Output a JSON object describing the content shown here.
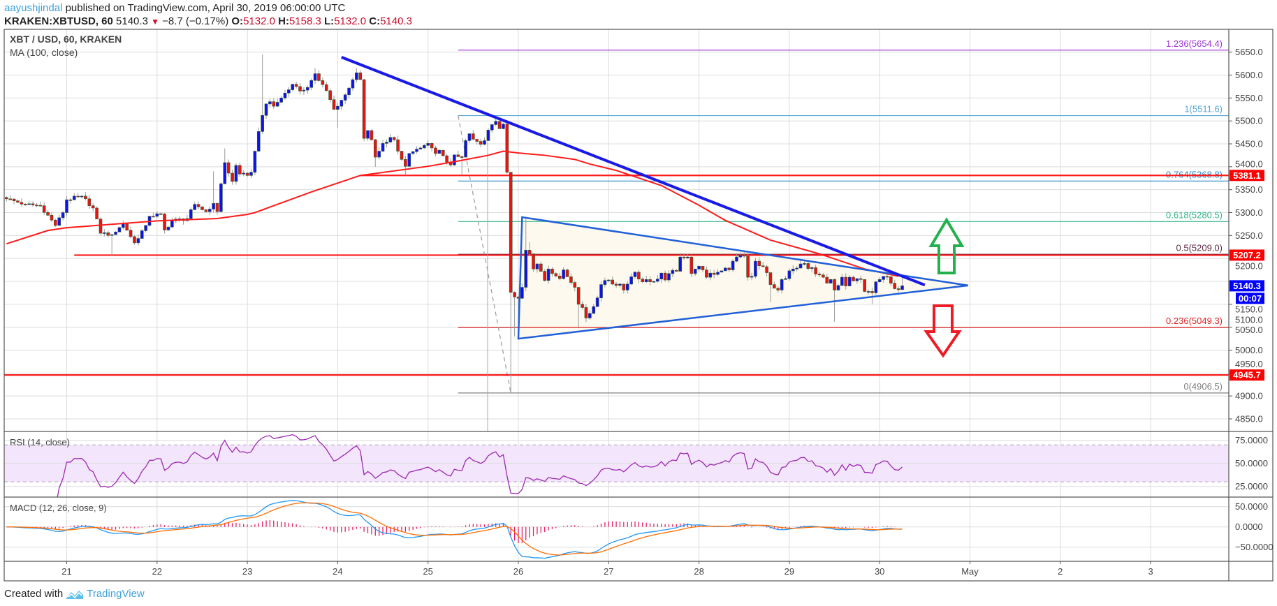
{
  "header": {
    "author": "aayushjindal",
    "published": "published on TradingView.com, April 30, 2019 06:00:00 UTC",
    "symbol": "KRAKEN:XBTUSD, 60",
    "last": "5140.3",
    "change": "−8.7 (−0.17%)",
    "o_label": "O:",
    "o": "5132.0",
    "h_label": "H:",
    "h": "5158.3",
    "l_label": "L:",
    "l": "5132.0",
    "c_label": "C:",
    "c": "5140.3",
    "down_icon": "triangle-down-icon"
  },
  "legend": {
    "title": "XBT / USD, 60, KRAKEN",
    "ma": "MA (100, close)",
    "rsi": "RSI (14, close)",
    "macd": "MACD (12, 26, close, 9)"
  },
  "footer": {
    "created": "Created with",
    "brand": "TradingView",
    "logo_icon": "tradingview-logo-icon"
  },
  "colors": {
    "up": "#1010ee",
    "down": "#ee1111",
    "ma": "#ff1a1a",
    "trend": "#1a1ae6",
    "triangle": "#2160d8",
    "triangle_fill": "#fdf9ee",
    "rsi": "#9c27b0",
    "rsi_band": "#f3e6fc",
    "macd": "#2196f3",
    "signal": "#ff6d00",
    "hist": "#e91e63",
    "up_arrow": "#22b14c",
    "down_arrow": "#ed1c24"
  },
  "chart_data": {
    "type": "candlestick",
    "title": "XBT / USD, 60, KRAKEN",
    "interval": "60",
    "y_ticks": [
      5650,
      5600,
      5550,
      5500,
      5450,
      5400,
      5350,
      5300,
      5250,
      5200,
      5150,
      5100,
      5050,
      5000,
      4950,
      4900,
      4850
    ],
    "x_ticks": [
      "21",
      "22",
      "23",
      "24",
      "25",
      "26",
      "27",
      "28",
      "29",
      "30",
      "May",
      "2",
      "3"
    ],
    "candle_path": [
      [
        "2019-04-20 08:00",
        5330
      ],
      [
        "2019-04-20 13:00",
        5318
      ],
      [
        "2019-04-20 17:00",
        5315
      ],
      [
        "2019-04-20 21:00",
        5272
      ],
      [
        "2019-04-20 23:00",
        5300
      ],
      [
        "2019-04-21 00:00",
        5328
      ],
      [
        "2019-04-21 04:00",
        5336
      ],
      [
        "2019-04-21 07:00",
        5310
      ],
      [
        "2019-04-21 09:00",
        5255
      ],
      [
        "2019-04-21 12:00",
        5252,
        null,
        5207
      ],
      [
        "2019-04-21 15:00",
        5277
      ],
      [
        "2019-04-21 18:00",
        5234
      ],
      [
        "2019-04-21 21:00",
        5272
      ],
      [
        "2019-04-21 22:00",
        5292
      ],
      [
        "2019-04-22 01:00",
        5297
      ],
      [
        "2019-04-22 02:00",
        5262
      ],
      [
        "2019-04-22 04:00",
        5282
      ],
      [
        "2019-04-22 08:00",
        5287
      ],
      [
        "2019-04-22 10:00",
        5318
      ],
      [
        "2019-04-22 13:00",
        5302
      ],
      [
        "2019-04-22 15:00",
        5320,
        5390,
        null
      ],
      [
        "2019-04-22 16:00",
        5302
      ],
      [
        "2019-04-22 17:00",
        5363
      ],
      [
        "2019-04-22 18:00",
        5409,
        5440,
        null
      ],
      [
        "2019-04-22 19:00",
        5386
      ],
      [
        "2019-04-22 20:00",
        5368
      ],
      [
        "2019-04-22 21:00",
        5403
      ],
      [
        "2019-04-22 22:00",
        5384
      ],
      [
        "2019-04-23 00:00",
        5381
      ],
      [
        "2019-04-23 01:00",
        5388
      ],
      [
        "2019-04-23 02:00",
        5434
      ],
      [
        "2019-04-23 04:00",
        5512,
        5645,
        null
      ],
      [
        "2019-04-23 05:00",
        5537
      ],
      [
        "2019-04-23 06:00",
        5542
      ],
      [
        "2019-04-23 07:00",
        5532
      ],
      [
        "2019-04-23 09:00",
        5550
      ],
      [
        "2019-04-23 11:00",
        5568
      ],
      [
        "2019-04-23 12:00",
        5580
      ],
      [
        "2019-04-23 14:00",
        5565
      ],
      [
        "2019-04-23 16:00",
        5573
      ],
      [
        "2019-04-23 18:00",
        5603,
        5615,
        null
      ],
      [
        "2019-04-23 19:00",
        5588
      ],
      [
        "2019-04-23 21:00",
        5566
      ],
      [
        "2019-04-23 23:00",
        5525
      ],
      [
        "2019-04-24 00:00",
        5532,
        null,
        5485
      ],
      [
        "2019-04-24 02:00",
        5557
      ],
      [
        "2019-04-24 04:00",
        5590
      ],
      [
        "2019-04-24 05:00",
        5605,
        5615,
        null
      ],
      [
        "2019-04-24 06:00",
        5590
      ],
      [
        "2019-04-24 07:00",
        5462
      ],
      [
        "2019-04-24 08:00",
        5479
      ],
      [
        "2019-04-24 09:00",
        5459
      ],
      [
        "2019-04-24 10:00",
        5421,
        null,
        5400
      ],
      [
        "2019-04-24 11:00",
        5434
      ],
      [
        "2019-04-24 12:00",
        5451
      ],
      [
        "2019-04-24 14:00",
        5464
      ],
      [
        "2019-04-24 15:00",
        5459
      ],
      [
        "2019-04-24 16:00",
        5434
      ],
      [
        "2019-04-24 17:00",
        5416
      ],
      [
        "2019-04-24 18:00",
        5401,
        null,
        5382
      ],
      [
        "2019-04-24 19:00",
        5429
      ],
      [
        "2019-04-24 20:00",
        5433
      ],
      [
        "2019-04-24 22:00",
        5441
      ],
      [
        "2019-04-25 00:00",
        5451
      ],
      [
        "2019-04-25 02:00",
        5429
      ],
      [
        "2019-04-25 03:00",
        5436
      ],
      [
        "2019-04-25 04:00",
        5424
      ],
      [
        "2019-04-25 06:00",
        5404
      ],
      [
        "2019-04-25 07:00",
        5426
      ],
      [
        "2019-04-25 09:00",
        5421,
        null,
        5382
      ],
      [
        "2019-04-25 10:00",
        5457
      ],
      [
        "2019-04-25 11:00",
        5472
      ],
      [
        "2019-04-25 12:00",
        5460
      ],
      [
        "2019-04-25 14:00",
        5449
      ],
      [
        "2019-04-25 15:00",
        5457
      ],
      [
        "2019-04-25 16:00",
        5480
      ],
      [
        "2019-04-25 17:00",
        5492
      ],
      [
        "2019-04-25 18:00",
        5499,
        5511.6,
        null
      ],
      [
        "2019-04-25 19:00",
        5483
      ],
      [
        "2019-04-25 20:00",
        5493
      ],
      [
        "2019-04-25 21:00",
        5388
      ],
      [
        "2019-04-25 22:00",
        5126,
        null,
        4906.5
      ],
      [
        "2019-04-25 23:00",
        5116,
        null,
        5030
      ],
      [
        "2019-04-26 00:00",
        5113,
        null,
        5060
      ],
      [
        "2019-04-26 01:00",
        5137
      ],
      [
        "2019-04-26 02:00",
        5218,
        5290,
        null
      ],
      [
        "2019-04-26 03:00",
        5210,
        5235,
        null
      ],
      [
        "2019-04-26 04:00",
        5177
      ],
      [
        "2019-04-26 05:00",
        5188
      ],
      [
        "2019-04-26 06:00",
        5172
      ],
      [
        "2019-04-26 07:00",
        5152
      ],
      [
        "2019-04-26 08:00",
        5177
      ],
      [
        "2019-04-26 09:00",
        5167
      ],
      [
        "2019-04-26 11:00",
        5156
      ],
      [
        "2019-04-26 12:00",
        5175
      ],
      [
        "2019-04-26 13:00",
        5160
      ],
      [
        "2019-04-26 15:00",
        5137
      ],
      [
        "2019-04-26 16:00",
        5100,
        null,
        5050
      ],
      [
        "2019-04-26 17:00",
        5093
      ],
      [
        "2019-04-26 18:00",
        5070
      ],
      [
        "2019-04-26 19:00",
        5080
      ],
      [
        "2019-04-26 20:00",
        5095
      ],
      [
        "2019-04-26 21:00",
        5114
      ],
      [
        "2019-04-26 22:00",
        5143
      ],
      [
        "2019-04-26 23:00",
        5152
      ],
      [
        "2019-04-27 00:00",
        5153
      ],
      [
        "2019-04-27 01:00",
        5144
      ],
      [
        "2019-04-27 03:00",
        5144
      ],
      [
        "2019-04-27 04:00",
        5131
      ],
      [
        "2019-04-27 05:00",
        5144
      ],
      [
        "2019-04-27 06:00",
        5160
      ],
      [
        "2019-04-27 07:00",
        5170
      ],
      [
        "2019-04-27 08:00",
        5155
      ],
      [
        "2019-04-27 09:00",
        5149
      ],
      [
        "2019-04-27 10:00",
        5154
      ],
      [
        "2019-04-27 12:00",
        5150
      ],
      [
        "2019-04-27 13:00",
        5155
      ],
      [
        "2019-04-27 14:00",
        5168
      ],
      [
        "2019-04-27 15:00",
        5153
      ],
      [
        "2019-04-27 16:00",
        5167
      ],
      [
        "2019-04-27 17:00",
        5174
      ],
      [
        "2019-04-27 18:00",
        5172
      ],
      [
        "2019-04-27 19:00",
        5203,
        5212,
        null
      ],
      [
        "2019-04-27 21:00",
        5203
      ],
      [
        "2019-04-27 22:00",
        5167
      ],
      [
        "2019-04-28 00:00",
        5183
      ],
      [
        "2019-04-28 01:00",
        5175
      ],
      [
        "2019-04-28 02:00",
        5159
      ],
      [
        "2019-04-28 03:00",
        5168
      ],
      [
        "2019-04-28 04:00",
        5165
      ],
      [
        "2019-04-28 05:00",
        5170
      ],
      [
        "2019-04-28 06:00",
        5173
      ],
      [
        "2019-04-28 07:00",
        5179
      ],
      [
        "2019-04-28 08:00",
        5175
      ],
      [
        "2019-04-28 09:00",
        5194
      ],
      [
        "2019-04-28 11:00",
        5207,
        5213,
        null
      ],
      [
        "2019-04-28 12:00",
        5205
      ],
      [
        "2019-04-28 13:00",
        5159
      ],
      [
        "2019-04-28 14:00",
        5161
      ],
      [
        "2019-04-28 15:00",
        5194
      ],
      [
        "2019-04-28 16:00",
        5184
      ],
      [
        "2019-04-28 17:00",
        5182
      ],
      [
        "2019-04-28 18:00",
        5169
      ],
      [
        "2019-04-28 19:00",
        5143,
        null,
        5105
      ],
      [
        "2019-04-28 20:00",
        5135
      ],
      [
        "2019-04-28 21:00",
        5131
      ],
      [
        "2019-04-28 22:00",
        5154
      ],
      [
        "2019-04-28 23:00",
        5156
      ],
      [
        "2019-04-29 00:00",
        5173
      ],
      [
        "2019-04-29 01:00",
        5177
      ],
      [
        "2019-04-29 02:00",
        5179
      ],
      [
        "2019-04-29 03:00",
        5188
      ],
      [
        "2019-04-29 04:00",
        5189
      ],
      [
        "2019-04-29 05:00",
        5178
      ],
      [
        "2019-04-29 06:00",
        5180
      ],
      [
        "2019-04-29 07:00",
        5166
      ],
      [
        "2019-04-29 08:00",
        5164
      ],
      [
        "2019-04-29 09:00",
        5159
      ],
      [
        "2019-04-29 10:00",
        5146
      ],
      [
        "2019-04-29 11:00",
        5154
      ],
      [
        "2019-04-29 12:00",
        5131,
        null,
        5062
      ],
      [
        "2019-04-29 13:00",
        5141
      ],
      [
        "2019-04-29 14:00",
        5159
      ],
      [
        "2019-04-29 15:00",
        5140
      ],
      [
        "2019-04-29 16:00",
        5159
      ],
      [
        "2019-04-29 17:00",
        5151
      ],
      [
        "2019-04-29 18:00",
        5156
      ],
      [
        "2019-04-29 19:00",
        5154
      ],
      [
        "2019-04-29 20:00",
        5128
      ],
      [
        "2019-04-29 21:00",
        5128
      ],
      [
        "2019-04-29 22:00",
        5125,
        null,
        5100
      ],
      [
        "2019-04-29 23:00",
        5149
      ],
      [
        "2019-04-30 00:00",
        5154
      ],
      [
        "2019-04-30 01:00",
        5161
      ],
      [
        "2019-04-30 02:00",
        5160
      ],
      [
        "2019-04-30 03:00",
        5146
      ],
      [
        "2019-04-30 04:00",
        5134
      ],
      [
        "2019-04-30 05:00",
        5132
      ],
      [
        "2019-04-30 06:00",
        5140.3,
        5158.3,
        5132.0
      ]
    ],
    "ma100": [
      [
        "2019-04-20 08:00",
        5232
      ],
      [
        "2019-04-20 19:00",
        5261
      ],
      [
        "2019-04-21 00:00",
        5267
      ],
      [
        "2019-04-22 00:00",
        5282
      ],
      [
        "2019-04-22 16:00",
        5287
      ],
      [
        "2019-04-23 00:00",
        5296
      ],
      [
        "2019-04-23 02:00",
        5300
      ],
      [
        "2019-04-23 17:00",
        5345
      ],
      [
        "2019-04-24 06:00",
        5381
      ],
      [
        "2019-04-25 00:00",
        5401
      ],
      [
        "2019-04-25 09:00",
        5414
      ],
      [
        "2019-04-25 16:00",
        5425
      ],
      [
        "2019-04-25 20:00",
        5434
      ],
      [
        "2019-04-26 00:00",
        5430
      ],
      [
        "2019-04-26 07:00",
        5425
      ],
      [
        "2019-04-26 15:00",
        5416
      ],
      [
        "2019-04-26 19:00",
        5406
      ],
      [
        "2019-04-27 02:00",
        5392
      ],
      [
        "2019-04-27 14:00",
        5359
      ],
      [
        "2019-04-28 00:00",
        5316
      ],
      [
        "2019-04-28 07:00",
        5283
      ],
      [
        "2019-04-28 19:00",
        5240
      ],
      [
        "2019-04-29 08:00",
        5210
      ],
      [
        "2019-04-29 20:00",
        5177
      ],
      [
        "2019-04-30 05:00",
        5161
      ]
    ],
    "fib_levels": [
      {
        "label": "1.236(5654.4)",
        "value": 5654.4,
        "color": "#9b30d9"
      },
      {
        "label": "1(5511.6)",
        "value": 5511.6,
        "color": "#5aa8d8"
      },
      {
        "label": "0.764(5368.8)",
        "value": 5368.8,
        "color": "#2a88c4"
      },
      {
        "label": "0.618(5280.5)",
        "value": 5280.5,
        "color": "#35b98a"
      },
      {
        "label": "0.5(5209.0)",
        "value": 5209.0,
        "color": "#5e2a48"
      },
      {
        "label": "0.236(5049.3)",
        "value": 5049.3,
        "color": "#dd2222"
      },
      {
        "label": "0(4906.5)",
        "value": 4906.5,
        "color": "#808080"
      }
    ],
    "horizontal_levels": [
      5381.1,
      5207.2,
      4945.7
    ],
    "price_tags": [
      {
        "text": "5381.1",
        "value": 5381.1,
        "bg": "#ff0000"
      },
      {
        "text": "5207.2",
        "value": 5207.2,
        "bg": "#ff0000"
      },
      {
        "text": "5140.3",
        "value": 5140.3,
        "bg": "#0000ff"
      },
      {
        "text": "4945.7",
        "value": 4945.7,
        "bg": "#ff0000"
      }
    ],
    "countdown": "00:07",
    "rsi": {
      "period": 14,
      "ticks": [
        "75.0000",
        "50.0000",
        "25.0000"
      ],
      "tick_values": [
        75,
        50,
        25
      ],
      "band": [
        30,
        70
      ]
    },
    "macd": {
      "fast": 12,
      "slow": 26,
      "signal": 9,
      "ticks": [
        "50.0000",
        "0.0000",
        "−50.0000"
      ],
      "tick_values": [
        50,
        0,
        -50
      ]
    }
  }
}
